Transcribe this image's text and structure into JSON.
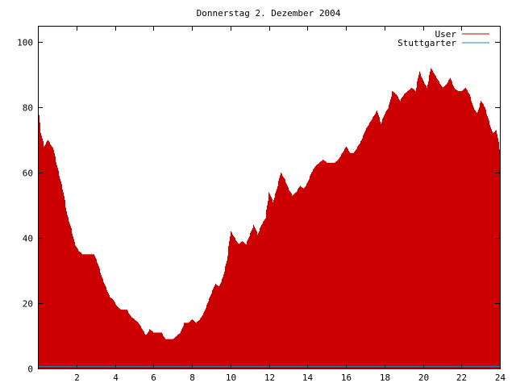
{
  "chart_data": {
    "type": "bar",
    "title": "Donnerstag 2. Dezember 2004",
    "xlim": [
      0,
      24
    ],
    "ylim": [
      0,
      105
    ],
    "x_ticks": [
      2,
      4,
      6,
      8,
      10,
      12,
      14,
      16,
      18,
      20,
      22,
      24
    ],
    "y_ticks": [
      0,
      20,
      40,
      60,
      80,
      100
    ],
    "grid": false,
    "legend_position": "top-right",
    "colors": {
      "user": "#cc0000",
      "stuttgarter": "#1f7fbf",
      "axis": "#000000"
    },
    "series": [
      {
        "name": "User",
        "anchors": [
          [
            0,
            80
          ],
          [
            0.1,
            73
          ],
          [
            0.3,
            68
          ],
          [
            0.5,
            70
          ],
          [
            0.8,
            67
          ],
          [
            0.9,
            64
          ],
          [
            1.1,
            59
          ],
          [
            1.3,
            54
          ],
          [
            1.5,
            47
          ],
          [
            1.7,
            43
          ],
          [
            1.9,
            38
          ],
          [
            2.1,
            36
          ],
          [
            2.3,
            35
          ],
          [
            2.9,
            35
          ],
          [
            3.1,
            32
          ],
          [
            3.3,
            28
          ],
          [
            3.5,
            25
          ],
          [
            3.7,
            22
          ],
          [
            3.9,
            21
          ],
          [
            4.1,
            19
          ],
          [
            4.3,
            18
          ],
          [
            4.6,
            18
          ],
          [
            4.8,
            16
          ],
          [
            5.0,
            15
          ],
          [
            5.2,
            14
          ],
          [
            5.4,
            12
          ],
          [
            5.6,
            10
          ],
          [
            5.8,
            12
          ],
          [
            6.0,
            11
          ],
          [
            6.4,
            11
          ],
          [
            6.6,
            9
          ],
          [
            7.0,
            9
          ],
          [
            7.2,
            10
          ],
          [
            7.4,
            11
          ],
          [
            7.6,
            14
          ],
          [
            7.8,
            14
          ],
          [
            8.0,
            15
          ],
          [
            8.2,
            14
          ],
          [
            8.4,
            15
          ],
          [
            8.6,
            17
          ],
          [
            8.8,
            20
          ],
          [
            9.0,
            23
          ],
          [
            9.2,
            26
          ],
          [
            9.4,
            25
          ],
          [
            9.6,
            28
          ],
          [
            9.8,
            33
          ],
          [
            10.0,
            42
          ],
          [
            10.2,
            40
          ],
          [
            10.4,
            38
          ],
          [
            10.6,
            39
          ],
          [
            10.8,
            38
          ],
          [
            11.0,
            41
          ],
          [
            11.2,
            44
          ],
          [
            11.4,
            41
          ],
          [
            11.6,
            44
          ],
          [
            11.8,
            46
          ],
          [
            12.0,
            54
          ],
          [
            12.2,
            51
          ],
          [
            12.4,
            55
          ],
          [
            12.6,
            60
          ],
          [
            12.8,
            58
          ],
          [
            13.0,
            55
          ],
          [
            13.2,
            53
          ],
          [
            13.4,
            54
          ],
          [
            13.6,
            56
          ],
          [
            13.8,
            55
          ],
          [
            14.0,
            57
          ],
          [
            14.2,
            60
          ],
          [
            14.4,
            62
          ],
          [
            14.6,
            63
          ],
          [
            14.8,
            64
          ],
          [
            15.0,
            63
          ],
          [
            15.4,
            63
          ],
          [
            15.6,
            64
          ],
          [
            15.8,
            66
          ],
          [
            16.0,
            68
          ],
          [
            16.2,
            66
          ],
          [
            16.4,
            66
          ],
          [
            16.6,
            68
          ],
          [
            16.8,
            70
          ],
          [
            17.0,
            73
          ],
          [
            17.2,
            75
          ],
          [
            17.4,
            77
          ],
          [
            17.6,
            79
          ],
          [
            17.8,
            75
          ],
          [
            18.0,
            78
          ],
          [
            18.2,
            80
          ],
          [
            18.4,
            85
          ],
          [
            18.6,
            84
          ],
          [
            18.8,
            82
          ],
          [
            19.0,
            84
          ],
          [
            19.2,
            85
          ],
          [
            19.4,
            86
          ],
          [
            19.6,
            85
          ],
          [
            19.8,
            91
          ],
          [
            20.0,
            88
          ],
          [
            20.2,
            86
          ],
          [
            20.4,
            92
          ],
          [
            20.6,
            90
          ],
          [
            20.8,
            88
          ],
          [
            21.0,
            86
          ],
          [
            21.2,
            87
          ],
          [
            21.4,
            89
          ],
          [
            21.6,
            86
          ],
          [
            21.8,
            85
          ],
          [
            22.0,
            85
          ],
          [
            22.2,
            86
          ],
          [
            22.4,
            84
          ],
          [
            22.6,
            80
          ],
          [
            22.8,
            78
          ],
          [
            23.0,
            82
          ],
          [
            23.2,
            80
          ],
          [
            23.4,
            76
          ],
          [
            23.6,
            72
          ],
          [
            23.8,
            73
          ],
          [
            24.0,
            66
          ]
        ]
      },
      {
        "name": "Stuttgarter",
        "anchors": [
          [
            0,
            0.5
          ],
          [
            24,
            0.5
          ]
        ]
      }
    ]
  }
}
